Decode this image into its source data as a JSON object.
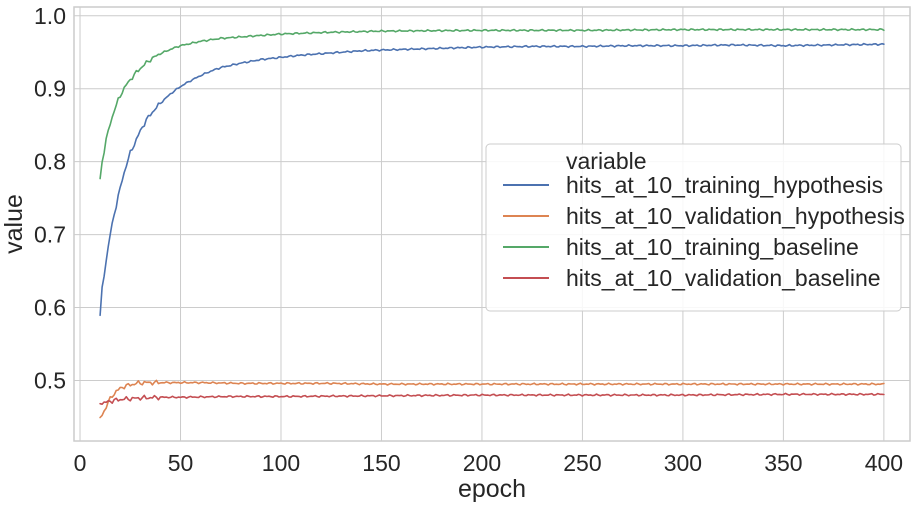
{
  "chart_data": {
    "type": "line",
    "xlabel": "epoch",
    "ylabel": "value",
    "xlim": [
      -3,
      413
    ],
    "ylim": [
      0.417,
      1.012
    ],
    "xticks": [
      0,
      50,
      100,
      150,
      200,
      250,
      300,
      350,
      400
    ],
    "yticks": [
      0.5,
      0.6,
      0.7,
      0.8,
      0.9,
      1.0
    ],
    "ytick_labels": [
      "0.5",
      "0.6",
      "0.7",
      "0.8",
      "0.9",
      "1.0"
    ],
    "grid": true,
    "legend": {
      "title": "variable",
      "placement": "center-right"
    },
    "series": [
      {
        "name": "hits_at_10_training_hypothesis",
        "color": "#4c72b0",
        "x": [
          10,
          11,
          13,
          15,
          17,
          19,
          21,
          23,
          25,
          28,
          30,
          33,
          36,
          40,
          45,
          50,
          55,
          60,
          65,
          70,
          80,
          90,
          100,
          110,
          120,
          130,
          140,
          150,
          175,
          200,
          225,
          250,
          275,
          300,
          325,
          350,
          375,
          400
        ],
        "y": [
          0.588,
          0.625,
          0.665,
          0.7,
          0.728,
          0.752,
          0.775,
          0.795,
          0.812,
          0.83,
          0.842,
          0.857,
          0.868,
          0.88,
          0.893,
          0.903,
          0.911,
          0.918,
          0.924,
          0.929,
          0.935,
          0.94,
          0.943,
          0.946,
          0.948,
          0.95,
          0.952,
          0.953,
          0.955,
          0.957,
          0.958,
          0.958,
          0.959,
          0.959,
          0.96,
          0.959,
          0.96,
          0.961
        ]
      },
      {
        "name": "hits_at_10_validation_hypothesis",
        "color": "#dd8452",
        "x": [
          10,
          12,
          14,
          16,
          18,
          20,
          22,
          25,
          28,
          32,
          36,
          40,
          50,
          60,
          80,
          100,
          125,
          150,
          200,
          250,
          300,
          350,
          400
        ],
        "y": [
          0.448,
          0.458,
          0.47,
          0.479,
          0.485,
          0.489,
          0.492,
          0.494,
          0.496,
          0.497,
          0.497,
          0.497,
          0.497,
          0.497,
          0.496,
          0.496,
          0.496,
          0.495,
          0.495,
          0.495,
          0.495,
          0.495,
          0.495
        ]
      },
      {
        "name": "hits_at_10_training_baseline",
        "color": "#55a868",
        "x": [
          10,
          11,
          13,
          15,
          17,
          19,
          21,
          23,
          26,
          30,
          35,
          40,
          45,
          50,
          60,
          70,
          80,
          90,
          100,
          120,
          150,
          200,
          250,
          300,
          350,
          400
        ],
        "y": [
          0.775,
          0.8,
          0.83,
          0.852,
          0.87,
          0.884,
          0.896,
          0.905,
          0.916,
          0.928,
          0.94,
          0.948,
          0.954,
          0.959,
          0.965,
          0.969,
          0.971,
          0.973,
          0.975,
          0.977,
          0.979,
          0.98,
          0.98,
          0.981,
          0.981,
          0.981
        ]
      },
      {
        "name": "hits_at_10_validation_baseline",
        "color": "#c44e52",
        "x": [
          10,
          12,
          14,
          16,
          18,
          20,
          25,
          30,
          40,
          50,
          75,
          100,
          150,
          200,
          250,
          300,
          350,
          400
        ],
        "y": [
          0.47,
          0.469,
          0.471,
          0.472,
          0.473,
          0.474,
          0.475,
          0.476,
          0.477,
          0.477,
          0.478,
          0.478,
          0.479,
          0.48,
          0.48,
          0.48,
          0.481,
          0.481
        ]
      }
    ]
  }
}
